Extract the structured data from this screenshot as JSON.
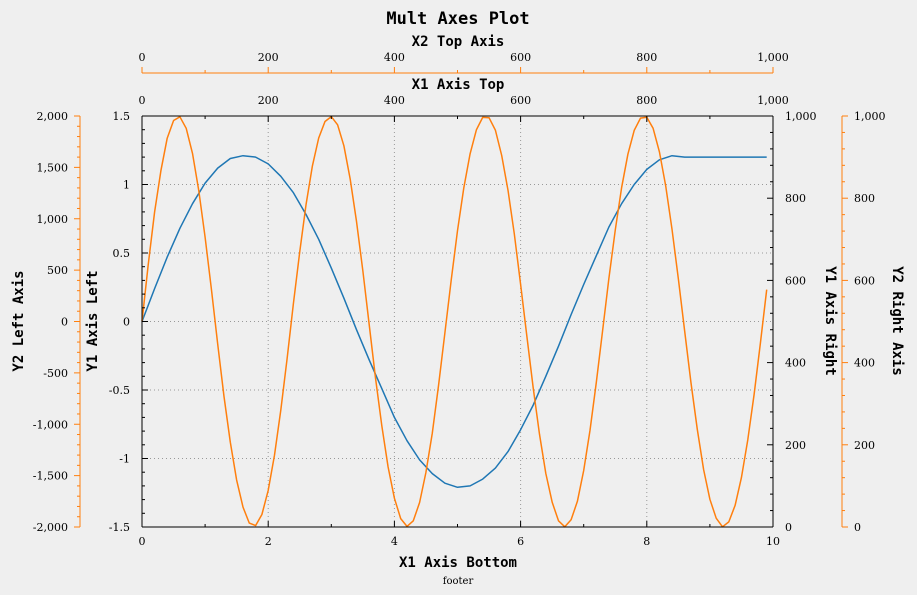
{
  "chart_data": {
    "type": "line",
    "title": "Mult Axes Plot",
    "footer": "footer",
    "grid": true,
    "colors": {
      "axis_orange": "#ff7f0e",
      "series_blue": "#1f77b4",
      "series_orange": "#ff7f0e",
      "grid": "#999999"
    },
    "axes": {
      "x1_bottom": {
        "label": "X1 Axis Bottom",
        "range": [
          0,
          10
        ],
        "ticks": [
          "0",
          "2",
          "4",
          "6",
          "8",
          "10"
        ]
      },
      "x1_top": {
        "label": "X1 Axis Top",
        "range": [
          0,
          1000
        ],
        "ticks": [
          "0",
          "200",
          "400",
          "600",
          "800",
          "1,000"
        ]
      },
      "x2_top": {
        "label": "X2 Top Axis",
        "range": [
          0,
          1000
        ],
        "ticks": [
          "0",
          "200",
          "400",
          "600",
          "800",
          "1,000"
        ]
      },
      "y1_left": {
        "label": "Y1 Axis Left",
        "range": [
          -1.5,
          1.5
        ],
        "ticks": [
          "-1.5",
          "-1",
          "-0.5",
          "0",
          "0.5",
          "1",
          "1.5"
        ]
      },
      "y2_left": {
        "label": "Y2 Left Axis",
        "range": [
          -2000,
          2000
        ],
        "ticks": [
          "-2,000",
          "-1,500",
          "-1,000",
          "-500",
          "0",
          "500",
          "1,000",
          "1,500",
          "2,000"
        ]
      },
      "y1_right": {
        "label": "Y1 Axis Right",
        "range": [
          0,
          1000
        ],
        "ticks": [
          "0",
          "200",
          "400",
          "600",
          "800",
          "1,000"
        ]
      },
      "y2_right": {
        "label": "Y2 Right Axis",
        "range": [
          0,
          1000
        ],
        "ticks": [
          "0",
          "200",
          "400",
          "600",
          "800",
          "1,000"
        ]
      }
    },
    "series": [
      {
        "color": "#1f77b4",
        "x": [
          0.0,
          0.2,
          0.4,
          0.6,
          0.8,
          1.0,
          1.2,
          1.4,
          1.6,
          1.8,
          2.0,
          2.2,
          2.4,
          2.6,
          2.8,
          3.0,
          3.2,
          3.4,
          3.6,
          3.8,
          4.0,
          4.2,
          4.4,
          4.6,
          4.8,
          5.0,
          5.2,
          5.4,
          5.6,
          5.8,
          6.0,
          6.2,
          6.4,
          6.6,
          6.8,
          7.0,
          7.2,
          7.4,
          7.6,
          7.8,
          8.0,
          8.2,
          8.4,
          8.6,
          8.8,
          9.0,
          9.2,
          9.4,
          9.6,
          9.8,
          9.9
        ],
        "y": [
          0.0,
          0.24,
          0.47,
          0.68,
          0.86,
          1.01,
          1.12,
          1.19,
          1.21,
          1.2,
          1.15,
          1.06,
          0.94,
          0.78,
          0.6,
          0.39,
          0.17,
          -0.06,
          -0.28,
          -0.49,
          -0.7,
          -0.87,
          -1.01,
          -1.11,
          -1.18,
          -1.21,
          -1.2,
          -1.15,
          -1.07,
          -0.95,
          -0.79,
          -0.61,
          -0.4,
          -0.18,
          0.05,
          0.27,
          0.48,
          0.69,
          0.86,
          1.0,
          1.11,
          1.18,
          1.21,
          1.2,
          1.2,
          1.2,
          1.2,
          1.2,
          1.2,
          1.2,
          1.2
        ]
      },
      {
        "color": "#ff7f0e",
        "x": [
          0.0,
          0.1,
          0.2,
          0.3,
          0.4,
          0.5,
          0.6,
          0.7,
          0.8,
          0.9,
          1.0,
          1.1,
          1.2,
          1.3,
          1.4,
          1.5,
          1.6,
          1.7,
          1.8,
          1.9,
          2.0,
          2.1,
          2.2,
          2.3,
          2.4,
          2.5,
          2.6,
          2.7,
          2.8,
          2.9,
          3.0,
          3.1,
          3.2,
          3.3,
          3.4,
          3.5,
          3.6,
          3.7,
          3.8,
          3.9,
          4.0,
          4.1,
          4.2,
          4.3,
          4.4,
          4.5,
          4.6,
          4.7,
          4.8,
          4.9,
          5.0,
          5.1,
          5.2,
          5.3,
          5.4,
          5.5,
          5.6,
          5.7,
          5.8,
          5.9,
          6.0,
          6.1,
          6.2,
          6.3,
          6.4,
          6.5,
          6.6,
          6.7,
          6.8,
          6.9,
          7.0,
          7.1,
          7.2,
          7.3,
          7.4,
          7.5,
          7.6,
          7.7,
          7.8,
          7.9,
          8.0,
          8.1,
          8.2,
          8.3,
          8.4,
          8.5,
          8.6,
          8.7,
          8.8,
          8.9,
          9.0,
          9.1,
          9.2,
          9.3,
          9.4,
          9.5,
          9.6,
          9.7,
          9.8,
          9.9
        ],
        "y": [
          0.0,
          560.0,
          1066.0,
          1468.0,
          1784.0,
          1956.0,
          1992.0,
          1880.0,
          1636.0,
          1272.0,
          820.0,
          314.0,
          -220.0,
          -730.0,
          -1174.0,
          -1542.0,
          -1806.0,
          -1962.0,
          -1986.0,
          -1878.0,
          -1644.0,
          -1300.0,
          -862.0,
          -362.0,
          174.0,
          682.0,
          1142.0,
          1514.0,
          1786.0,
          1946.0,
          1994.0,
          1914.0,
          1710.0,
          1386.0,
          974.0,
          490.0,
          -30.0,
          -550.0,
          -1014.0,
          -1416.0,
          -1720.0,
          -1918.0,
          -1994.0,
          -1940.0,
          -1762.0,
          -1470.0,
          -1086.0,
          -618.0,
          -110.0,
          402.0,
          884.0,
          1300.0,
          1632.0,
          1866.0,
          1986.0,
          1982.0,
          1862.0,
          1616.0,
          1278.0,
          854.0,
          362.0,
          -146.0,
          -646.0,
          -1098.0,
          -1478.0,
          -1760.0,
          -1940.0,
          -1998.0,
          -1930.0,
          -1750.0,
          -1450.0,
          -1060.0,
          -594.0,
          -90.0,
          420.0,
          892.0,
          1302.0,
          1628.0,
          1860.0,
          1980.0,
          1988.0,
          1880.0,
          1652.0,
          1320.0,
          898.0,
          412.0,
          -96.0,
          -598.0,
          -1050.0,
          -1440.0,
          -1730.0,
          -1914.0,
          -1998.0,
          -1950.0,
          -1790.0,
          -1520.0,
          -1150.0,
          -710.0,
          -210.0,
          310.0
        ]
      }
    ]
  }
}
